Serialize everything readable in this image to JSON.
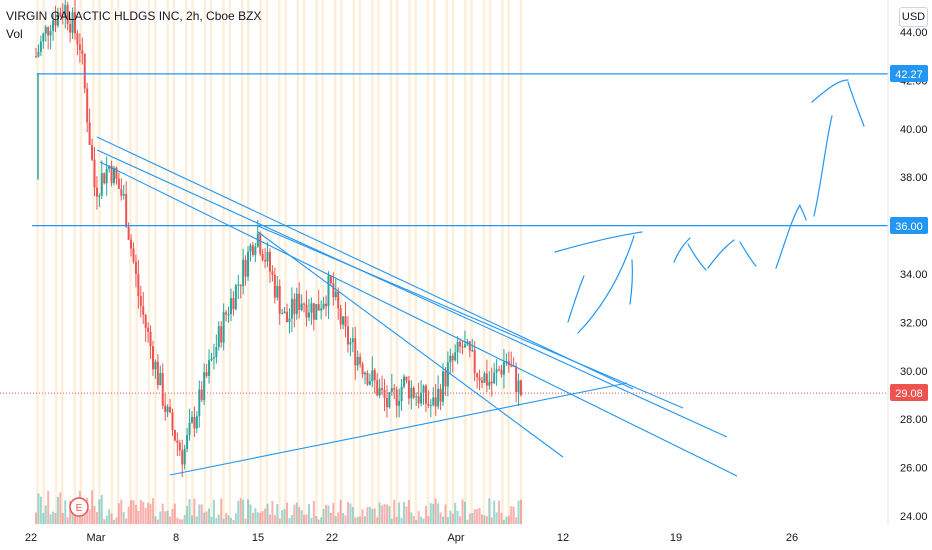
{
  "header": {
    "symbol_line": "VIRGIN GALACTIC HLDGS INC, 2h, Cboe BZX",
    "volume_label": "Vol",
    "currency": "USD",
    "earnings_marker": "E"
  },
  "colors": {
    "up": "#26a69a",
    "down": "#ef5350",
    "trendline": "#2196f3",
    "session_shade": "#fde2bd",
    "price_tag": "#ef5350",
    "level_tag": "#2196f3"
  },
  "chart_data": {
    "type": "candlestick",
    "title": "VIRGIN GALACTIC HLDGS INC, 2h, Cboe BZX",
    "ylabel": "USD",
    "ylim": [
      23.5,
      45.5
    ],
    "y_ticks": [
      "44.00",
      "42.00",
      "40.00",
      "38.00",
      "36.00",
      "34.00",
      "32.00",
      "30.00",
      "28.00",
      "26.00",
      "24.00"
    ],
    "x_ticks": [
      "22",
      "Mar",
      "8",
      "15",
      "22",
      "Apr",
      "12",
      "19",
      "26"
    ],
    "x_tick_dates": [
      "2021-02-22",
      "2021-03-01",
      "2021-03-08",
      "2021-03-15",
      "2021-03-22",
      "2021-04-01",
      "2021-04-12",
      "2021-04-19",
      "2021-04-26"
    ],
    "last_price": "29.08",
    "horizontal_levels": [
      {
        "value": 42.27,
        "label": "42.27"
      },
      {
        "value": 36.0,
        "label": "36.00"
      }
    ],
    "candles_close_path": [
      [
        "2021-02-22",
        43.0
      ],
      [
        "2021-02-23",
        44.5
      ],
      [
        "2021-02-24",
        45.0
      ],
      [
        "2021-02-25",
        43.5
      ],
      [
        "2021-02-26",
        37.5
      ],
      [
        "2021-03-01",
        38.5
      ],
      [
        "2021-03-02",
        37.0
      ],
      [
        "2021-03-03",
        33.0
      ],
      [
        "2021-03-04",
        30.5
      ],
      [
        "2021-03-05",
        28.0
      ],
      [
        "2021-03-08",
        26.5
      ],
      [
        "2021-03-09",
        28.5
      ],
      [
        "2021-03-10",
        30.5
      ],
      [
        "2021-03-11",
        32.5
      ],
      [
        "2021-03-12",
        34.0
      ],
      [
        "2021-03-15",
        35.8
      ],
      [
        "2021-03-16",
        34.0
      ],
      [
        "2021-03-17",
        32.0
      ],
      [
        "2021-03-18",
        33.0
      ],
      [
        "2021-03-19",
        32.5
      ],
      [
        "2021-03-22",
        33.5
      ],
      [
        "2021-03-23",
        31.5
      ],
      [
        "2021-03-24",
        30.5
      ],
      [
        "2021-03-25",
        29.5
      ],
      [
        "2021-03-26",
        28.5
      ],
      [
        "2021-03-29",
        29.5
      ],
      [
        "2021-03-30",
        29.0
      ],
      [
        "2021-03-31",
        28.5
      ],
      [
        "2021-04-01",
        30.0
      ],
      [
        "2021-04-05",
        31.0
      ],
      [
        "2021-04-06",
        30.0
      ],
      [
        "2021-04-07",
        29.5
      ],
      [
        "2021-04-08",
        30.5
      ],
      [
        "2021-04-09",
        29.08
      ]
    ]
  }
}
